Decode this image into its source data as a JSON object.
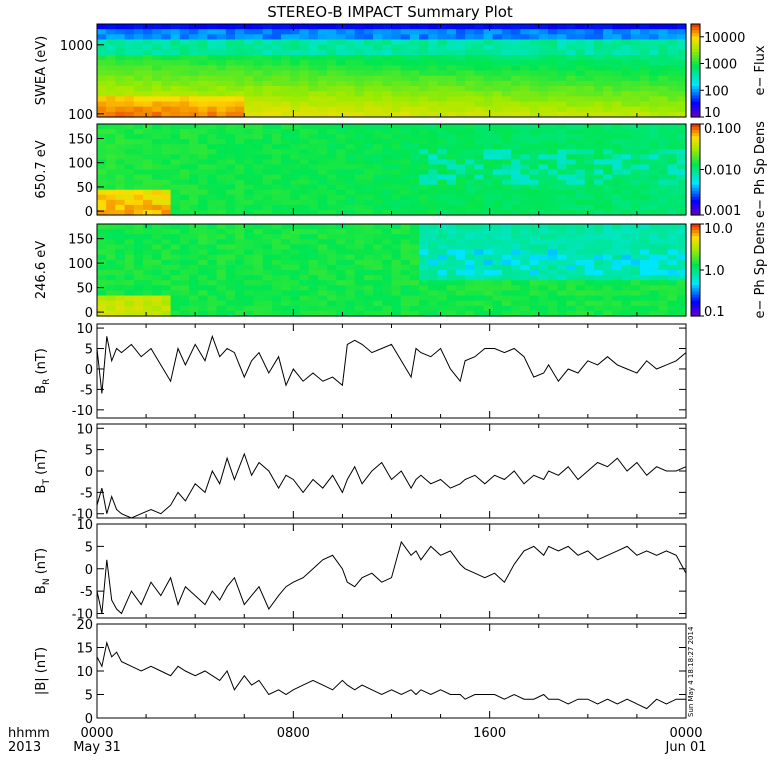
{
  "title": "STEREO-B IMPACT Summary Plot",
  "x_axis": {
    "row1_label": "hhmm",
    "row2_label": "2013",
    "ticks": [
      {
        "hour": 0,
        "label": "0000",
        "sub": "May 31"
      },
      {
        "hour": 8,
        "label": "0800",
        "sub": ""
      },
      {
        "hour": 16,
        "label": "1600",
        "sub": ""
      },
      {
        "hour": 24,
        "label": "0000",
        "sub": "Jun 01"
      }
    ]
  },
  "timestamp": "Sun May  4 18:18:27 2014",
  "chart_data": [
    {
      "type": "heatmap",
      "id": "swea",
      "ylabel": "SWEA (eV)",
      "yscale": "log",
      "ylim": [
        90,
        2000
      ],
      "yticks": [
        {
          "v": 100,
          "label": "100"
        },
        {
          "v": 1000,
          "label": "1000"
        }
      ],
      "colorbar": {
        "label": "e− Flux",
        "scale": "log",
        "range": [
          10,
          30000
        ],
        "ticks": [
          {
            "v": 10,
            "label": "10"
          },
          {
            "v": 100,
            "label": "100"
          },
          {
            "v": 1000,
            "label": "1000"
          },
          {
            "v": 10000,
            "label": "10000"
          }
        ]
      }
    },
    {
      "type": "heatmap",
      "id": "pad650",
      "ylabel": "650.7 eV",
      "yscale": "linear",
      "ylim": [
        -8,
        180
      ],
      "yticks": [
        {
          "v": 0,
          "label": "0"
        },
        {
          "v": 50,
          "label": "50"
        },
        {
          "v": 100,
          "label": "100"
        },
        {
          "v": 150,
          "label": "150"
        }
      ],
      "colorbar": {
        "label": "e− Ph Sp Dens",
        "scale": "log",
        "range": [
          0.001,
          0.1
        ],
        "ticks": [
          {
            "v": 0.001,
            "label": "0.001"
          },
          {
            "v": 0.01,
            "label": "0.010"
          },
          {
            "v": 0.1,
            "label": "0.100"
          }
        ]
      }
    },
    {
      "type": "heatmap",
      "id": "pad246",
      "ylabel": "246.6 eV",
      "yscale": "linear",
      "ylim": [
        -8,
        180
      ],
      "yticks": [
        {
          "v": 0,
          "label": "0"
        },
        {
          "v": 50,
          "label": "50"
        },
        {
          "v": 100,
          "label": "100"
        },
        {
          "v": 150,
          "label": "150"
        }
      ],
      "colorbar": {
        "label": "e− Ph Sp Dens",
        "scale": "log",
        "range": [
          0.1,
          10
        ],
        "ticks": [
          {
            "v": 0.1,
            "label": "0.1"
          },
          {
            "v": 1,
            "label": "1.0"
          },
          {
            "v": 10,
            "label": "10.0"
          }
        ]
      }
    },
    {
      "type": "line",
      "id": "br",
      "ylabel_main": "B",
      "ylabel_sub": "R",
      "ylabel_unit": "(nT)",
      "ylim": [
        -12,
        11
      ],
      "yticks": [
        -10,
        -5,
        0,
        5,
        10
      ],
      "x": [
        0,
        0.2,
        0.4,
        0.6,
        0.8,
        1.0,
        1.4,
        1.8,
        2.2,
        2.6,
        3.0,
        3.3,
        3.6,
        4.0,
        4.4,
        4.7,
        5.0,
        5.3,
        5.6,
        6.0,
        6.3,
        6.6,
        7.0,
        7.4,
        7.7,
        8.0,
        8.4,
        8.8,
        9.2,
        9.6,
        10.0,
        10.2,
        10.5,
        10.8,
        11.2,
        11.6,
        12.0,
        12.4,
        12.8,
        13.0,
        13.2,
        13.6,
        14.0,
        14.4,
        14.8,
        15.0,
        15.4,
        15.8,
        16.2,
        16.6,
        17.0,
        17.4,
        17.8,
        18.2,
        18.4,
        18.8,
        19.2,
        19.6,
        20.0,
        20.4,
        20.8,
        21.2,
        21.6,
        22.0,
        22.4,
        22.8,
        23.2,
        23.6,
        24.0
      ],
      "y": [
        5,
        -6,
        8,
        2,
        5,
        4,
        6,
        3,
        5,
        1,
        -3,
        5,
        1,
        6,
        2,
        8,
        3,
        5,
        4,
        -2,
        2,
        4,
        -1,
        3,
        -4,
        0,
        -3,
        -1,
        -3,
        -2,
        -4,
        6,
        7,
        6,
        4,
        5,
        6,
        2,
        -2,
        5,
        4,
        3,
        5,
        0,
        -3,
        2,
        3,
        5,
        5,
        4,
        5,
        3,
        -2,
        -1,
        1,
        -3,
        0,
        -1,
        2,
        1,
        3,
        1,
        0,
        -1,
        2,
        0,
        1,
        2,
        4
      ]
    },
    {
      "type": "line",
      "id": "bt",
      "ylabel_main": "B",
      "ylabel_sub": "T",
      "ylabel_unit": "(nT)",
      "ylim": [
        -11,
        11
      ],
      "yticks": [
        -10,
        -5,
        0,
        5,
        10
      ],
      "x": [
        0,
        0.2,
        0.4,
        0.6,
        0.8,
        1.0,
        1.4,
        1.8,
        2.2,
        2.6,
        3.0,
        3.3,
        3.6,
        4.0,
        4.4,
        4.7,
        5.0,
        5.3,
        5.6,
        6.0,
        6.3,
        6.6,
        7.0,
        7.4,
        7.7,
        8.0,
        8.4,
        8.8,
        9.2,
        9.6,
        10.0,
        10.2,
        10.5,
        10.8,
        11.2,
        11.6,
        12.0,
        12.4,
        12.8,
        13.0,
        13.2,
        13.6,
        14.0,
        14.4,
        14.8,
        15.0,
        15.4,
        15.8,
        16.2,
        16.6,
        17.0,
        17.4,
        17.8,
        18.2,
        18.4,
        18.8,
        19.2,
        19.6,
        20.0,
        20.4,
        20.8,
        21.2,
        21.6,
        22.0,
        22.4,
        22.8,
        23.2,
        23.6,
        24.0
      ],
      "y": [
        -8,
        -4,
        -10,
        -6,
        -9,
        -10,
        -11,
        -10,
        -9,
        -10,
        -8,
        -5,
        -7,
        -3,
        -5,
        0,
        -3,
        3,
        -2,
        4,
        -1,
        2,
        0,
        -4,
        -1,
        -2,
        -5,
        -2,
        -4,
        -1,
        -5,
        -2,
        1,
        -3,
        0,
        2,
        -2,
        0,
        -4,
        -2,
        -1,
        -3,
        -2,
        -4,
        -3,
        -2,
        -1,
        -3,
        -1,
        -2,
        0,
        -3,
        -1,
        -2,
        0,
        -1,
        1,
        -2,
        0,
        2,
        1,
        3,
        0,
        2,
        -1,
        1,
        0,
        0,
        1
      ]
    },
    {
      "type": "line",
      "id": "bn",
      "ylabel_main": "B",
      "ylabel_sub": "N",
      "ylabel_unit": "(nT)",
      "ylim": [
        -11,
        10
      ],
      "yticks": [
        -10,
        -5,
        0,
        5,
        10
      ],
      "x": [
        0,
        0.2,
        0.4,
        0.6,
        0.8,
        1.0,
        1.4,
        1.8,
        2.2,
        2.6,
        3.0,
        3.3,
        3.6,
        4.0,
        4.4,
        4.7,
        5.0,
        5.3,
        5.6,
        6.0,
        6.3,
        6.6,
        7.0,
        7.4,
        7.7,
        8.0,
        8.4,
        8.8,
        9.2,
        9.6,
        10.0,
        10.2,
        10.5,
        10.8,
        11.2,
        11.6,
        12.0,
        12.4,
        12.8,
        13.0,
        13.2,
        13.6,
        14.0,
        14.4,
        14.8,
        15.0,
        15.4,
        15.8,
        16.2,
        16.6,
        17.0,
        17.4,
        17.8,
        18.2,
        18.4,
        18.8,
        19.2,
        19.6,
        20.0,
        20.4,
        20.8,
        21.2,
        21.6,
        22.0,
        22.4,
        22.8,
        23.2,
        23.6,
        24.0
      ],
      "y": [
        -5,
        -10,
        2,
        -7,
        -9,
        -10,
        -5,
        -8,
        -3,
        -6,
        -2,
        -8,
        -4,
        -6,
        -8,
        -5,
        -7,
        -4,
        -2,
        -8,
        -6,
        -4,
        -9,
        -6,
        -4,
        -3,
        -2,
        0,
        2,
        3,
        0,
        -3,
        -4,
        -2,
        -1,
        -3,
        -2,
        6,
        3,
        4,
        2,
        5,
        3,
        4,
        1,
        0,
        -1,
        -2,
        -1,
        -3,
        1,
        4,
        5,
        3,
        5,
        4,
        5,
        3,
        4,
        2,
        3,
        4,
        5,
        3,
        4,
        3,
        4,
        3,
        -1
      ]
    },
    {
      "type": "line",
      "id": "bmag",
      "ylabel_main": "|B| (nT)",
      "ylabel_sub": "",
      "ylabel_unit": "",
      "ylim": [
        0,
        20
      ],
      "yticks": [
        0,
        5,
        10,
        15,
        20
      ],
      "x": [
        0,
        0.2,
        0.4,
        0.6,
        0.8,
        1.0,
        1.4,
        1.8,
        2.2,
        2.6,
        3.0,
        3.3,
        3.6,
        4.0,
        4.4,
        4.7,
        5.0,
        5.3,
        5.6,
        6.0,
        6.3,
        6.6,
        7.0,
        7.4,
        7.7,
        8.0,
        8.4,
        8.8,
        9.2,
        9.6,
        10.0,
        10.2,
        10.5,
        10.8,
        11.2,
        11.6,
        12.0,
        12.4,
        12.8,
        13.0,
        13.2,
        13.6,
        14.0,
        14.4,
        14.8,
        15.0,
        15.4,
        15.8,
        16.2,
        16.6,
        17.0,
        17.4,
        17.8,
        18.2,
        18.4,
        18.8,
        19.2,
        19.6,
        20.0,
        20.4,
        20.8,
        21.2,
        21.6,
        22.0,
        22.4,
        22.8,
        23.2,
        23.6,
        24.0
      ],
      "y": [
        13,
        11,
        16,
        13,
        14,
        12,
        11,
        10,
        11,
        10,
        9,
        11,
        10,
        9,
        10,
        9,
        8,
        10,
        6,
        9,
        7,
        8,
        5,
        6,
        5,
        6,
        7,
        8,
        7,
        6,
        8,
        7,
        6,
        7,
        6,
        5,
        6,
        5,
        6,
        5,
        6,
        5,
        6,
        5,
        5,
        4,
        5,
        5,
        5,
        4,
        5,
        4,
        4,
        5,
        4,
        4,
        3,
        4,
        4,
        3,
        4,
        3,
        4,
        3,
        2,
        4,
        3,
        4,
        4
      ]
    }
  ]
}
